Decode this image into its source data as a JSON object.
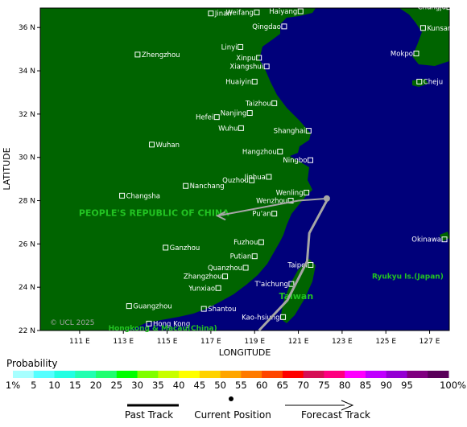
{
  "map": {
    "axes": {
      "x_label": "LONGITUDE",
      "y_label": "LATITUDE",
      "lon_ticks": [
        {
          "lon": 111,
          "label": "111 E"
        },
        {
          "lon": 113,
          "label": "113 E"
        },
        {
          "lon": 115,
          "label": "115 E"
        },
        {
          "lon": 117,
          "label": "117 E"
        },
        {
          "lon": 119,
          "label": "119 E"
        },
        {
          "lon": 121,
          "label": "121 E"
        },
        {
          "lon": 123,
          "label": "123 E"
        },
        {
          "lon": 125,
          "label": "125 E"
        },
        {
          "lon": 127,
          "label": "127 E"
        }
      ],
      "lat_ticks": [
        {
          "lat": 36,
          "label": "36 N"
        },
        {
          "lat": 34,
          "label": "34 N"
        },
        {
          "lat": 32,
          "label": "32 N"
        },
        {
          "lat": 30,
          "label": "30 N"
        },
        {
          "lat": 28,
          "label": "28 N"
        },
        {
          "lat": 26,
          "label": "26 N"
        },
        {
          "lat": 24,
          "label": "24 N"
        },
        {
          "lat": 22,
          "label": "22 N"
        }
      ],
      "lon_range": [
        109.2,
        127.9
      ],
      "lat_range": [
        22,
        36.9
      ]
    },
    "colors": {
      "land": "#006400",
      "sea": "#00007a",
      "track": "#a6a6a6",
      "region_label": "#22c322",
      "city_label": "#ffffff"
    },
    "cities": [
      {
        "name": "Jinan",
        "lon": 117.0,
        "lat": 36.65
      },
      {
        "name": "Haiyang",
        "lon": 121.1,
        "lat": 36.75
      },
      {
        "name": "Weifang",
        "lon": 119.1,
        "lat": 36.7
      },
      {
        "name": "Qingdao",
        "lon": 120.35,
        "lat": 36.05
      },
      {
        "name": "Chungju",
        "lon": 127.9,
        "lat": 36.95
      },
      {
        "name": "Kunsan",
        "lon": 126.7,
        "lat": 35.98
      },
      {
        "name": "Linyi",
        "lon": 118.35,
        "lat": 35.1
      },
      {
        "name": "Zhengzhou",
        "lon": 113.65,
        "lat": 34.75
      },
      {
        "name": "Xinpu",
        "lon": 119.2,
        "lat": 34.6
      },
      {
        "name": "Mokpo",
        "lon": 126.39,
        "lat": 34.8
      },
      {
        "name": "Xiangshui",
        "lon": 119.55,
        "lat": 34.2
      },
      {
        "name": "Huaiyin",
        "lon": 119.0,
        "lat": 33.5
      },
      {
        "name": "Cheju",
        "lon": 126.53,
        "lat": 33.5
      },
      {
        "name": "Taizhou",
        "lon": 119.9,
        "lat": 32.5
      },
      {
        "name": "Nanjing",
        "lon": 118.78,
        "lat": 32.05
      },
      {
        "name": "Hefei",
        "lon": 117.27,
        "lat": 31.86
      },
      {
        "name": "Wuhu",
        "lon": 118.38,
        "lat": 31.35
      },
      {
        "name": "Shanghai",
        "lon": 121.47,
        "lat": 31.23
      },
      {
        "name": "Wuhan",
        "lon": 114.3,
        "lat": 30.59
      },
      {
        "name": "Hangzhou",
        "lon": 120.16,
        "lat": 30.27
      },
      {
        "name": "Ningbo",
        "lon": 121.55,
        "lat": 29.87
      },
      {
        "name": "Jinhua",
        "lon": 119.65,
        "lat": 29.1
      },
      {
        "name": "Quzhou",
        "lon": 118.87,
        "lat": 28.94
      },
      {
        "name": "Nanchang",
        "lon": 115.85,
        "lat": 28.68
      },
      {
        "name": "Wenling",
        "lon": 121.37,
        "lat": 28.37
      },
      {
        "name": "Changsha",
        "lon": 112.94,
        "lat": 28.23
      },
      {
        "name": "Wenzhou",
        "lon": 120.65,
        "lat": 28.0
      },
      {
        "name": "Pu'an",
        "lon": 119.9,
        "lat": 27.4
      },
      {
        "name": "Okinawa",
        "lon": 127.68,
        "lat": 26.21
      },
      {
        "name": "Fuzhou",
        "lon": 119.3,
        "lat": 26.08
      },
      {
        "name": "Ganzhou",
        "lon": 114.93,
        "lat": 25.83
      },
      {
        "name": "Putian",
        "lon": 119.0,
        "lat": 25.43
      },
      {
        "name": "Taipei",
        "lon": 121.56,
        "lat": 25.03
      },
      {
        "name": "Quanzhou",
        "lon": 118.59,
        "lat": 24.9
      },
      {
        "name": "Zhangzhou",
        "lon": 117.65,
        "lat": 24.5
      },
      {
        "name": "T'aichung",
        "lon": 120.68,
        "lat": 24.15
      },
      {
        "name": "Yunxiao",
        "lon": 117.34,
        "lat": 23.96
      },
      {
        "name": "Guangzhou",
        "lon": 113.26,
        "lat": 23.13
      },
      {
        "name": "Shantou",
        "lon": 116.68,
        "lat": 23.0
      },
      {
        "name": "Hong Kong",
        "lon": 114.17,
        "lat": 22.32
      },
      {
        "name": "Kao-hsiung",
        "lon": 120.3,
        "lat": 22.62
      }
    ],
    "region_labels": [
      {
        "text": "PEOPLE'S REPUBLIC OF CHINA",
        "lon": 114.4,
        "lat": 27.3,
        "size": 11
      },
      {
        "text": "Ryukyu Is.(Japan)",
        "lon": 126.0,
        "lat": 24.4,
        "size": 9
      },
      {
        "text": "Taiwan",
        "lon": 120.9,
        "lat": 23.45,
        "size": 11
      },
      {
        "text": "Hongkong & Macau(China)",
        "lon": 114.8,
        "lat": 22.0,
        "size": 9
      }
    ],
    "copyright": "© UCL 2025",
    "track": {
      "past": [
        [
          119.2,
          22.0
        ],
        [
          120.5,
          23.4
        ],
        [
          121.4,
          25.2
        ],
        [
          121.5,
          26.5
        ],
        [
          122.3,
          28.0
        ]
      ],
      "current": [
        122.3,
        28.1
      ],
      "forecast": [
        [
          122.3,
          28.1
        ],
        [
          121.0,
          28.0
        ],
        [
          117.3,
          27.3
        ]
      ]
    }
  },
  "legend": {
    "title": "Probability",
    "labels": [
      "1%",
      "5",
      "10",
      "15",
      "20",
      "25",
      "30",
      "35",
      "40",
      "45",
      "50",
      "55",
      "60",
      "65",
      "70",
      "75",
      "80",
      "85",
      "90",
      "95",
      "100%"
    ],
    "colors": [
      "#a7ffff",
      "#55ffff",
      "#22ffe2",
      "#22ffb0",
      "#1fff6f",
      "#00ff00",
      "#7fff00",
      "#c8ff00",
      "#ffff00",
      "#ffd200",
      "#ffa500",
      "#ff7a00",
      "#ff4500",
      "#ff0000",
      "#d60f55",
      "#ff0080",
      "#ff00ff",
      "#c000ff",
      "#9400d3",
      "#800080",
      "#5a005a"
    ],
    "key_past": "Past Track",
    "key_current": "Current Position",
    "key_forecast": "Forecast Track"
  }
}
